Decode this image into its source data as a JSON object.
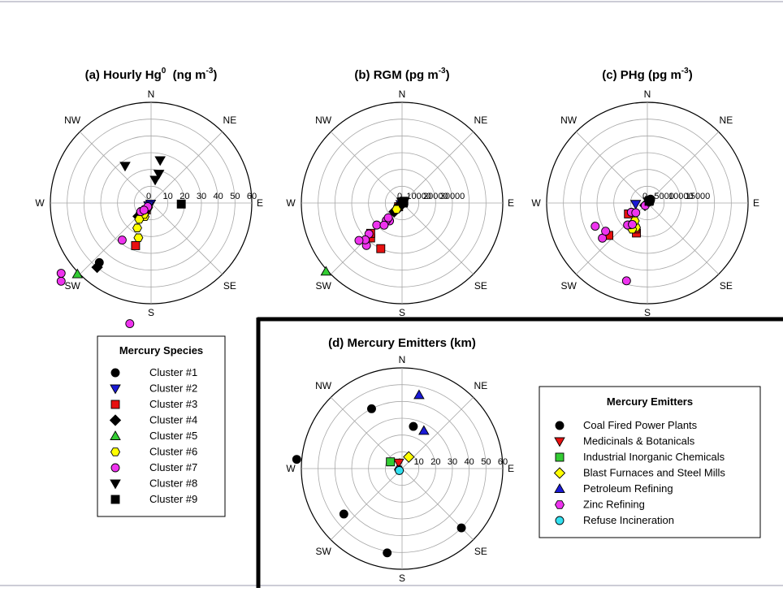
{
  "colors": {
    "black": "#000000",
    "blue": "#1a1ad6",
    "red": "#e81010",
    "green": "#33cc33",
    "yellow": "#ffff00",
    "magenta": "#ee33ee",
    "cyan": "#33e0f0",
    "frame": "#9a9aac"
  },
  "chart_data": [
    {
      "id": "a",
      "type": "polar-scatter",
      "title_main": "(a) Hourly Hg",
      "title_sup": "0",
      "title_unit_pre": "(ng m",
      "title_unit_sup": "-3",
      "title_unit_post": ")",
      "directions": [
        "N",
        "NE",
        "E",
        "SE",
        "S",
        "SW",
        "W",
        "NW"
      ],
      "rmax": 60,
      "rtick_labels": [
        "0",
        "10",
        "20",
        "30",
        "40",
        "50",
        "60"
      ],
      "rtick_values": [
        0,
        10,
        20,
        30,
        40,
        50,
        60
      ],
      "series": [
        {
          "name": "Cluster #1",
          "marker": "circle",
          "color": "black",
          "points": [
            [
              225,
              6
            ],
            [
              223,
              8
            ],
            [
              221,
              47
            ],
            [
              226,
              9
            ]
          ]
        },
        {
          "name": "Cluster #2",
          "marker": "triangle-down",
          "color": "blue",
          "points": [
            [
              210,
              0.5
            ],
            [
              225,
              2
            ]
          ]
        },
        {
          "name": "Cluster #3",
          "marker": "square",
          "color": "red",
          "points": [
            [
              215,
              5
            ],
            [
              222,
              7
            ],
            [
              200,
              27
            ],
            [
              218,
              10
            ],
            [
              212,
              9
            ]
          ]
        },
        {
          "name": "Cluster #4",
          "marker": "diamond",
          "color": "black",
          "points": [
            [
              224,
              11
            ],
            [
              222,
              9
            ],
            [
              216,
              6
            ],
            [
              220,
              50
            ]
          ]
        },
        {
          "name": "Cluster #5",
          "marker": "triangle-up",
          "color": "green",
          "points": [
            [
              226,
              61
            ]
          ]
        },
        {
          "name": "Cluster #6",
          "marker": "hexagon",
          "color": "yellow",
          "points": [
            [
              205,
              9
            ],
            [
              200,
              22
            ],
            [
              214,
              3
            ],
            [
              212,
              8
            ],
            [
              209,
              17
            ],
            [
              216,
              12
            ]
          ]
        },
        {
          "name": "Cluster #7",
          "marker": "circle",
          "color": "magenta",
          "points": [
            [
              229,
              71
            ],
            [
              232,
              68
            ],
            [
              218,
              28
            ],
            [
              190,
              73
            ],
            [
              230,
              8
            ],
            [
              222,
              3
            ],
            [
              225,
              6
            ]
          ]
        },
        {
          "name": "Cluster #8",
          "marker": "triangle-down",
          "color": "black",
          "points": [
            [
              325,
              27
            ],
            [
              12,
              26
            ],
            [
              15,
              18
            ],
            [
              10,
              14
            ]
          ]
        },
        {
          "name": "Cluster #9",
          "marker": "square",
          "color": "black",
          "points": [
            [
              92,
              18
            ]
          ]
        }
      ]
    },
    {
      "id": "b",
      "type": "polar-scatter",
      "title_main": "(b) RGM",
      "title_sup": "",
      "title_unit_pre": "(pg m",
      "title_unit_sup": "-3",
      "title_unit_post": ")",
      "directions": [
        "N",
        "NE",
        "E",
        "SE",
        "S",
        "SW",
        "W",
        "NW"
      ],
      "rmax": 60000,
      "rtick_labels": [
        "0",
        "10000",
        "20000",
        "30000"
      ],
      "rtick_values": [
        0,
        10000,
        20000,
        30000
      ],
      "series": [
        {
          "name": "Cluster #1",
          "marker": "circle",
          "color": "black",
          "points": [
            [
              225,
              2000
            ],
            [
              222,
              3000
            ],
            [
              228,
              3500
            ],
            [
              219,
              4500
            ]
          ]
        },
        {
          "name": "Cluster #2",
          "marker": "triangle-down",
          "color": "blue",
          "points": [
            [
              225,
              1000
            ]
          ]
        },
        {
          "name": "Cluster #3",
          "marker": "square",
          "color": "red",
          "points": [
            [
              222,
              28000
            ],
            [
              205,
              30000
            ],
            [
              226,
              26000
            ],
            [
              223,
              3000
            ]
          ]
        },
        {
          "name": "Cluster #4",
          "marker": "diamond",
          "color": "black",
          "points": [
            [
              215,
              3000
            ],
            [
              222,
              7000
            ],
            [
              226,
              1500
            ]
          ]
        },
        {
          "name": "Cluster #5",
          "marker": "triangle-up",
          "color": "green",
          "points": [
            [
              228,
              61000
            ]
          ]
        },
        {
          "name": "Cluster #6",
          "marker": "hexagon",
          "color": "yellow",
          "points": [
            [
              221,
              5000
            ]
          ]
        },
        {
          "name": "Cluster #7",
          "marker": "circle",
          "color": "magenta",
          "points": [
            [
              220,
              33000
            ],
            [
              227,
              27000
            ],
            [
              215,
              13000
            ],
            [
              222,
              14000
            ],
            [
              229,
              20000
            ],
            [
              223,
              12000
            ],
            [
              219,
              17000
            ],
            [
              225,
              31000
            ],
            [
              229,
              34000
            ]
          ]
        },
        {
          "name": "Cluster #8",
          "marker": "triangle-down",
          "color": "black",
          "points": [
            [
              20,
              900
            ],
            [
              345,
              800
            ],
            [
              60,
              1500
            ]
          ]
        },
        {
          "name": "Cluster #9",
          "marker": "square",
          "color": "black",
          "points": [
            [
              90,
              800
            ],
            [
              45,
              1500
            ]
          ]
        }
      ]
    },
    {
      "id": "c",
      "type": "polar-scatter",
      "title_main": "(c) PHg",
      "title_sup": "",
      "title_unit_pre": "(pg m",
      "title_unit_sup": "-3",
      "title_unit_post": ")",
      "directions": [
        "N",
        "NE",
        "E",
        "SE",
        "S",
        "SW",
        "W",
        "NW"
      ],
      "rmax": 30000,
      "rtick_labels": [
        "0",
        "5000",
        "10000",
        "15000"
      ],
      "rtick_values": [
        0,
        5000,
        10000,
        15000
      ],
      "series": [
        {
          "name": "Cluster #1",
          "marker": "circle",
          "color": "black",
          "points": [
            [
              40,
              1500
            ],
            [
              50,
              1200
            ],
            [
              60,
              800
            ]
          ]
        },
        {
          "name": "Cluster #2",
          "marker": "triangle-down",
          "color": "blue",
          "points": [
            [
              265,
              3500
            ]
          ]
        },
        {
          "name": "Cluster #3",
          "marker": "square",
          "color": "red",
          "points": [
            [
              230,
              15000
            ],
            [
              200,
              9500
            ],
            [
              240,
              6500
            ],
            [
              205,
              8500
            ]
          ]
        },
        {
          "name": "Cluster #4",
          "marker": "diamond",
          "color": "black",
          "points": [
            [
              225,
              1000
            ]
          ]
        },
        {
          "name": "Cluster #6",
          "marker": "hexagon",
          "color": "yellow",
          "points": [
            [
              205,
              8000
            ],
            [
              210,
              9000
            ],
            [
              220,
              8500
            ],
            [
              215,
              6500
            ]
          ]
        },
        {
          "name": "Cluster #7",
          "marker": "circle",
          "color": "magenta",
          "points": [
            [
              195,
              24000
            ],
            [
              232,
              17000
            ],
            [
              236,
              15000
            ],
            [
              222,
              8800
            ],
            [
              215,
              7800
            ],
            [
              240,
              5500
            ],
            [
              230,
              4500
            ],
            [
              220,
              1000
            ],
            [
              246,
              17000
            ]
          ]
        },
        {
          "name": "Cluster #8",
          "marker": "triangle-down",
          "color": "black",
          "points": [
            [
              30,
              500
            ]
          ]
        },
        {
          "name": "Cluster #9",
          "marker": "square",
          "color": "black",
          "points": [
            [
              40,
              1000
            ],
            [
              45,
              700
            ]
          ]
        }
      ]
    },
    {
      "id": "d",
      "type": "polar-scatter",
      "title_main": "(d) Mercury Emitters (km)",
      "title_sup": "",
      "title_unit_pre": "",
      "title_unit_sup": "",
      "title_unit_post": "",
      "directions": [
        "N",
        "NE",
        "E",
        "SE",
        "S",
        "SW",
        "W",
        "NW"
      ],
      "rmax": 60,
      "rtick_labels": [
        "0",
        "10",
        "20",
        "30",
        "40",
        "50",
        "60"
      ],
      "rtick_values": [
        0,
        10,
        20,
        30,
        40,
        50,
        60
      ],
      "series": [
        {
          "name": "Coal Fired Power Plants",
          "marker": "circle",
          "color": "black",
          "points": [
            [
              333,
              40
            ],
            [
              275,
              63
            ],
            [
              232,
              44
            ],
            [
              190,
              51
            ],
            [
              135,
              50
            ],
            [
              15,
              26
            ]
          ]
        },
        {
          "name": "Medicinals & Botanicals",
          "marker": "triangle-down",
          "color": "red",
          "points": [
            [
              330,
              4
            ]
          ]
        },
        {
          "name": "Industrial Inorganic Chemicals",
          "marker": "square",
          "color": "green",
          "points": [
            [
              300,
              8
            ]
          ]
        },
        {
          "name": "Blast Furnaces and Steel Mills",
          "marker": "diamond",
          "color": "yellow",
          "points": [
            [
              30,
              8
            ]
          ]
        },
        {
          "name": "Petroleum Refining",
          "marker": "triangle-up",
          "color": "blue",
          "points": [
            [
              13,
              45
            ],
            [
              30,
              26
            ]
          ]
        },
        {
          "name": "Zinc Refining",
          "marker": "hexagon",
          "color": "magenta",
          "points": [
            [
              250,
              2
            ]
          ]
        },
        {
          "name": "Refuse Incineration",
          "marker": "circle",
          "color": "cyan",
          "points": [
            [
              235,
              2
            ]
          ]
        }
      ]
    }
  ],
  "legend_species": {
    "title": "Mercury Species",
    "items": [
      {
        "label": "Cluster #1",
        "marker": "circle",
        "color": "black"
      },
      {
        "label": "Cluster #2",
        "marker": "triangle-down",
        "color": "blue"
      },
      {
        "label": "Cluster #3",
        "marker": "square",
        "color": "red"
      },
      {
        "label": "Cluster #4",
        "marker": "diamond",
        "color": "black"
      },
      {
        "label": "Cluster #5",
        "marker": "triangle-up",
        "color": "green"
      },
      {
        "label": "Cluster #6",
        "marker": "hexagon",
        "color": "yellow"
      },
      {
        "label": "Cluster #7",
        "marker": "circle",
        "color": "magenta"
      },
      {
        "label": "Cluster #8",
        "marker": "triangle-down",
        "color": "black"
      },
      {
        "label": "Cluster #9",
        "marker": "square",
        "color": "black"
      }
    ]
  },
  "legend_emitters": {
    "title": "Mercury Emitters",
    "items": [
      {
        "label": "Coal Fired Power Plants",
        "marker": "circle",
        "color": "black"
      },
      {
        "label": "Medicinals & Botanicals",
        "marker": "triangle-down",
        "color": "red"
      },
      {
        "label": "Industrial Inorganic Chemicals",
        "marker": "square",
        "color": "green"
      },
      {
        "label": "Blast Furnaces and Steel Mills",
        "marker": "diamond",
        "color": "yellow"
      },
      {
        "label": "Petroleum Refining",
        "marker": "triangle-up",
        "color": "blue"
      },
      {
        "label": "Zinc Refining",
        "marker": "hexagon",
        "color": "magenta"
      },
      {
        "label": "Refuse Incineration",
        "marker": "circle",
        "color": "cyan"
      }
    ]
  }
}
